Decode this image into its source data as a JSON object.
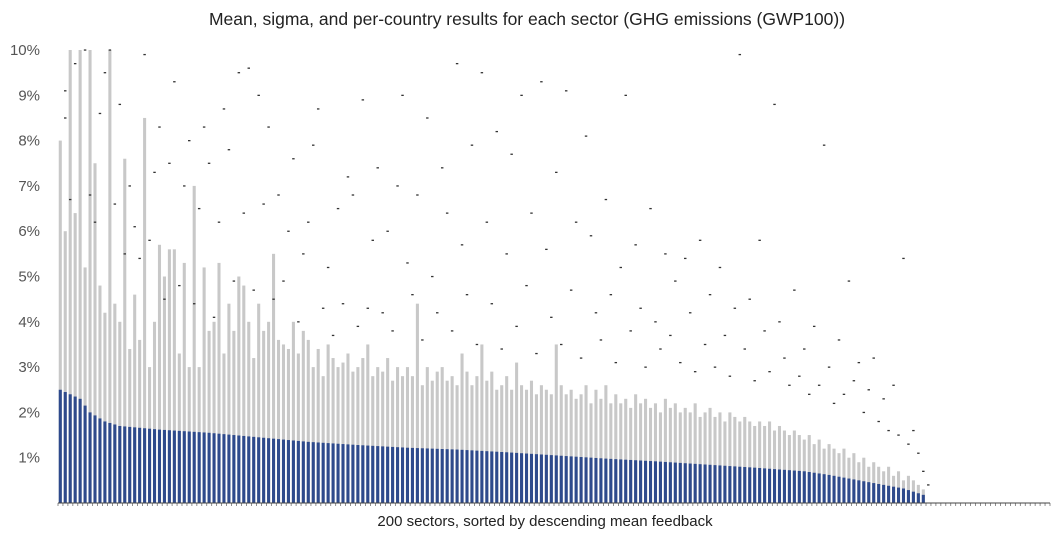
{
  "chart_data": {
    "type": "bar",
    "title": "Mean, sigma, and per-country results for each sector  (GHG emissions (GWP100))",
    "xlabel": "200 sectors, sorted by descending mean feedback",
    "ylabel": "",
    "ylim": [
      0,
      10
    ],
    "y_unit": "%",
    "y_ticks": [
      "1%",
      "2%",
      "3%",
      "4%",
      "5%",
      "6%",
      "7%",
      "8%",
      "9%",
      "10%"
    ],
    "n_sectors": 200,
    "n_sectors_with_data": 175,
    "grid": false,
    "legend": "none",
    "colors": {
      "mean": "#2e4a8c",
      "sigma": "#c8c8c8",
      "country": "#333333",
      "axis": "#444444"
    },
    "mean_curve": [
      [
        0,
        2.5
      ],
      [
        1,
        2.45
      ],
      [
        4,
        2.3
      ],
      [
        6,
        2.0
      ],
      [
        9,
        1.8
      ],
      [
        12,
        1.7
      ],
      [
        20,
        1.62
      ],
      [
        30,
        1.55
      ],
      [
        40,
        1.45
      ],
      [
        50,
        1.35
      ],
      [
        60,
        1.28
      ],
      [
        70,
        1.22
      ],
      [
        80,
        1.18
      ],
      [
        90,
        1.12
      ],
      [
        100,
        1.05
      ],
      [
        110,
        0.98
      ],
      [
        120,
        0.92
      ],
      [
        130,
        0.85
      ],
      [
        140,
        0.78
      ],
      [
        150,
        0.7
      ],
      [
        155,
        0.62
      ],
      [
        160,
        0.52
      ],
      [
        165,
        0.42
      ],
      [
        170,
        0.32
      ],
      [
        174,
        0.18
      ],
      [
        175,
        0.0
      ],
      [
        199,
        0.0
      ]
    ],
    "sigma_top": [
      8.0,
      6.0,
      10.0,
      6.4,
      10.0,
      5.2,
      10.0,
      7.5,
      4.8,
      4.2,
      10.0,
      4.4,
      4.0,
      7.6,
      3.4,
      4.6,
      3.6,
      8.5,
      3.0,
      4.0,
      5.7,
      5.0,
      5.6,
      5.6,
      3.3,
      5.3,
      3.0,
      7.0,
      3.0,
      5.2,
      3.8,
      4.0,
      5.3,
      3.3,
      4.4,
      3.8,
      5.0,
      4.8,
      4.0,
      3.2,
      4.4,
      3.8,
      4.0,
      5.5,
      3.6,
      3.5,
      3.4,
      4.0,
      3.3,
      3.8,
      3.6,
      3.0,
      3.4,
      2.8,
      3.5,
      3.2,
      3.0,
      3.1,
      3.3,
      2.9,
      3.0,
      3.2,
      3.5,
      2.8,
      3.0,
      2.9,
      3.2,
      2.7,
      3.0,
      2.8,
      3.0,
      2.8,
      4.4,
      2.6,
      3.0,
      2.7,
      2.9,
      3.0,
      2.7,
      2.8,
      2.6,
      3.3,
      2.9,
      2.6,
      2.8,
      3.5,
      2.7,
      2.9,
      2.5,
      2.6,
      2.8,
      2.5,
      3.1,
      2.6,
      2.5,
      2.7,
      2.4,
      2.6,
      2.5,
      2.4,
      3.5,
      2.6,
      2.4,
      2.5,
      2.3,
      2.4,
      2.6,
      2.2,
      2.5,
      2.3,
      2.6,
      2.2,
      2.4,
      2.2,
      2.3,
      2.1,
      2.4,
      2.2,
      2.3,
      2.1,
      2.2,
      2.0,
      2.3,
      2.1,
      2.2,
      2.0,
      2.1,
      2.0,
      2.2,
      1.9,
      2.0,
      2.1,
      1.9,
      2.0,
      1.8,
      2.0,
      1.9,
      1.8,
      1.9,
      1.8,
      1.7,
      1.8,
      1.7,
      1.8,
      1.6,
      1.7,
      1.6,
      1.5,
      1.6,
      1.5,
      1.4,
      1.5,
      1.3,
      1.4,
      1.2,
      1.3,
      1.2,
      1.1,
      1.2,
      1.0,
      1.1,
      0.9,
      1.0,
      0.8,
      0.9,
      0.8,
      0.7,
      0.8,
      0.6,
      0.7,
      0.5,
      0.6,
      0.5,
      0.4,
      0.3
    ],
    "country_points": [
      [
        1,
        9.1
      ],
      [
        1,
        8.5
      ],
      [
        2,
        6.7
      ],
      [
        3,
        9.7
      ],
      [
        5,
        10.0
      ],
      [
        6,
        6.8
      ],
      [
        7,
        6.2
      ],
      [
        8,
        8.6
      ],
      [
        9,
        9.5
      ],
      [
        10,
        10.0
      ],
      [
        11,
        6.6
      ],
      [
        12,
        8.8
      ],
      [
        13,
        5.5
      ],
      [
        14,
        7.0
      ],
      [
        15,
        6.1
      ],
      [
        16,
        5.4
      ],
      [
        17,
        9.9
      ],
      [
        18,
        5.8
      ],
      [
        19,
        7.3
      ],
      [
        20,
        8.3
      ],
      [
        21,
        4.5
      ],
      [
        22,
        7.5
      ],
      [
        23,
        9.3
      ],
      [
        24,
        4.8
      ],
      [
        25,
        7.0
      ],
      [
        26,
        8.0
      ],
      [
        27,
        4.4
      ],
      [
        28,
        6.5
      ],
      [
        29,
        8.3
      ],
      [
        30,
        7.5
      ],
      [
        31,
        4.1
      ],
      [
        32,
        6.2
      ],
      [
        33,
        8.7
      ],
      [
        34,
        7.8
      ],
      [
        35,
        4.9
      ],
      [
        36,
        9.5
      ],
      [
        37,
        6.4
      ],
      [
        38,
        9.6
      ],
      [
        39,
        4.7
      ],
      [
        40,
        9.0
      ],
      [
        41,
        6.6
      ],
      [
        42,
        8.3
      ],
      [
        43,
        4.5
      ],
      [
        44,
        6.8
      ],
      [
        45,
        4.9
      ],
      [
        46,
        6.0
      ],
      [
        47,
        7.6
      ],
      [
        48,
        4.0
      ],
      [
        49,
        5.5
      ],
      [
        50,
        6.2
      ],
      [
        51,
        7.9
      ],
      [
        52,
        8.7
      ],
      [
        53,
        4.3
      ],
      [
        54,
        5.2
      ],
      [
        55,
        3.7
      ],
      [
        56,
        6.5
      ],
      [
        57,
        4.4
      ],
      [
        58,
        7.2
      ],
      [
        59,
        6.8
      ],
      [
        60,
        3.9
      ],
      [
        61,
        8.9
      ],
      [
        62,
        4.3
      ],
      [
        63,
        5.8
      ],
      [
        64,
        7.4
      ],
      [
        65,
        4.2
      ],
      [
        66,
        6.0
      ],
      [
        67,
        3.8
      ],
      [
        68,
        7.0
      ],
      [
        69,
        9.0
      ],
      [
        70,
        5.3
      ],
      [
        71,
        4.6
      ],
      [
        72,
        6.8
      ],
      [
        73,
        3.6
      ],
      [
        74,
        8.5
      ],
      [
        75,
        5.0
      ],
      [
        76,
        4.2
      ],
      [
        77,
        7.4
      ],
      [
        78,
        6.4
      ],
      [
        79,
        3.8
      ],
      [
        80,
        9.7
      ],
      [
        81,
        5.7
      ],
      [
        82,
        4.6
      ],
      [
        83,
        7.9
      ],
      [
        84,
        3.5
      ],
      [
        85,
        9.5
      ],
      [
        86,
        6.2
      ],
      [
        87,
        4.4
      ],
      [
        88,
        8.2
      ],
      [
        89,
        3.4
      ],
      [
        90,
        5.5
      ],
      [
        91,
        7.7
      ],
      [
        92,
        3.9
      ],
      [
        93,
        9.0
      ],
      [
        94,
        4.8
      ],
      [
        95,
        6.4
      ],
      [
        96,
        3.3
      ],
      [
        97,
        9.3
      ],
      [
        98,
        5.6
      ],
      [
        99,
        4.1
      ],
      [
        100,
        7.3
      ],
      [
        101,
        3.5
      ],
      [
        102,
        9.1
      ],
      [
        103,
        4.7
      ],
      [
        104,
        6.2
      ],
      [
        105,
        3.2
      ],
      [
        106,
        8.1
      ],
      [
        107,
        5.9
      ],
      [
        108,
        4.2
      ],
      [
        109,
        3.6
      ],
      [
        110,
        6.7
      ],
      [
        111,
        4.6
      ],
      [
        112,
        3.1
      ],
      [
        113,
        5.2
      ],
      [
        114,
        9.0
      ],
      [
        115,
        3.8
      ],
      [
        116,
        5.7
      ],
      [
        117,
        4.3
      ],
      [
        118,
        3.0
      ],
      [
        119,
        6.5
      ],
      [
        120,
        4.0
      ],
      [
        121,
        3.4
      ],
      [
        122,
        5.5
      ],
      [
        123,
        3.7
      ],
      [
        124,
        4.9
      ],
      [
        125,
        3.1
      ],
      [
        126,
        5.4
      ],
      [
        127,
        4.2
      ],
      [
        128,
        2.9
      ],
      [
        129,
        5.8
      ],
      [
        130,
        3.5
      ],
      [
        131,
        4.6
      ],
      [
        132,
        3.0
      ],
      [
        133,
        5.2
      ],
      [
        134,
        3.7
      ],
      [
        135,
        2.8
      ],
      [
        136,
        4.3
      ],
      [
        137,
        9.9
      ],
      [
        138,
        3.4
      ],
      [
        139,
        4.5
      ],
      [
        140,
        2.7
      ],
      [
        141,
        5.8
      ],
      [
        142,
        3.8
      ],
      [
        143,
        2.9
      ],
      [
        144,
        8.8
      ],
      [
        145,
        4.0
      ],
      [
        146,
        3.2
      ],
      [
        147,
        2.6
      ],
      [
        148,
        4.7
      ],
      [
        149,
        2.8
      ],
      [
        150,
        3.4
      ],
      [
        151,
        2.4
      ],
      [
        152,
        3.9
      ],
      [
        153,
        2.6
      ],
      [
        154,
        7.9
      ],
      [
        155,
        3.0
      ],
      [
        156,
        2.2
      ],
      [
        157,
        3.6
      ],
      [
        158,
        2.4
      ],
      [
        159,
        4.9
      ],
      [
        160,
        2.7
      ],
      [
        161,
        3.1
      ],
      [
        162,
        2.0
      ],
      [
        163,
        2.5
      ],
      [
        164,
        3.2
      ],
      [
        165,
        1.8
      ],
      [
        166,
        2.3
      ],
      [
        167,
        1.6
      ],
      [
        168,
        2.6
      ],
      [
        169,
        1.5
      ],
      [
        170,
        5.4
      ],
      [
        171,
        1.3
      ],
      [
        172,
        1.6
      ],
      [
        173,
        1.1
      ],
      [
        174,
        0.7
      ],
      [
        175,
        0.4
      ]
    ]
  }
}
